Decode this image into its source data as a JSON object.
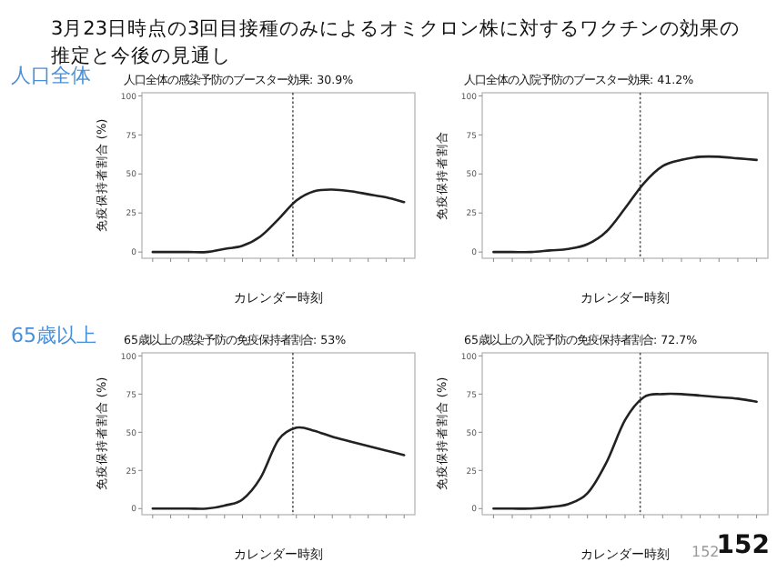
{
  "chart_data": [
    {
      "type": "other",
      "title": "3月23日時点の3回目接種のみによるオミクロン株に対するワクチンの効果の推定と今後の見通し",
      "annotations": [
        "152",
        "152"
      ]
    },
    {
      "type": "line",
      "title": "人口全体の感染予防のブースター効果: 30.9%",
      "subtitle": "人口全体",
      "xlabel": "カレンダー時刻",
      "ylabel": "免疫保持者割合 (%)",
      "categories": [
        null,
        null,
        null,
        null,
        null,
        null,
        null,
        null,
        null,
        null,
        null,
        null,
        null,
        null,
        null
      ],
      "values": [
        0,
        0,
        0,
        0,
        2,
        4,
        10,
        21,
        33,
        39,
        40,
        39,
        37,
        35,
        32
      ],
      "color": "#222222",
      "ylim": [
        -4,
        102
      ],
      "yticks": [
        0,
        25,
        50,
        75,
        100
      ],
      "grid": false
    },
    {
      "type": "line",
      "title": "人口全体の入院予防のブースター効果: 41.2%",
      "xlabel": "カレンダー時刻",
      "ylabel": "免疫保持者割合",
      "categories": [
        null,
        null,
        null,
        null,
        null,
        null,
        null,
        null,
        null,
        null,
        null,
        null,
        null,
        null,
        null
      ],
      "values": [
        0,
        0,
        0,
        1,
        2,
        5,
        13,
        28,
        44,
        55,
        59,
        61,
        61,
        60,
        59
      ],
      "color": "#222222",
      "ylim": [
        -4,
        102
      ],
      "yticks": [
        0,
        25,
        50,
        75,
        100
      ],
      "grid": false
    },
    {
      "type": "line",
      "title": "65歳以上の感染予防の免疫保持者割合: 53%",
      "subtitle": "65歳以上",
      "xlabel": "カレンダー時刻",
      "ylabel": "免疫保持者割合 (%)",
      "categories": [
        null,
        null,
        null,
        null,
        null,
        null,
        null,
        null,
        null,
        null,
        null,
        null,
        null,
        null,
        null
      ],
      "values": [
        0,
        0,
        0,
        0,
        2,
        6,
        20,
        45,
        53,
        51,
        47,
        44,
        41,
        38,
        35
      ],
      "color": "#222222",
      "ylim": [
        -4,
        102
      ],
      "yticks": [
        0,
        25,
        50,
        75,
        100
      ],
      "grid": false
    },
    {
      "type": "line",
      "title": "65歳以上の入院予防の免疫保持者割合: 72.7%",
      "xlabel": "カレンダー時刻",
      "ylabel": "免疫保持者割合 (%)",
      "categories": [
        null,
        null,
        null,
        null,
        null,
        null,
        null,
        null,
        null,
        null,
        null,
        null,
        null,
        null,
        null
      ],
      "values": [
        0,
        0,
        0,
        1,
        3,
        10,
        30,
        58,
        73,
        75,
        75,
        74,
        73,
        72,
        70
      ],
      "color": "#222222",
      "ylim": [
        -4,
        102
      ],
      "yticks": [
        0,
        25,
        50,
        75,
        100
      ],
      "grid": false
    }
  ]
}
